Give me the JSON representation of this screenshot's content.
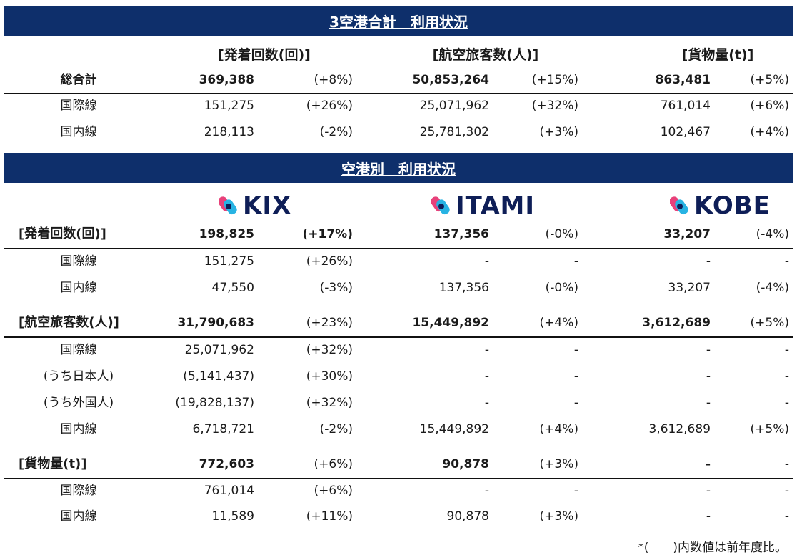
{
  "colors": {
    "banner_bg": "#0e2f6b",
    "banner_text": "#ffffff",
    "logo_text": "#0e1e57",
    "logo_pink": "#e8417a",
    "logo_cyan": "#27b3e3"
  },
  "section1": {
    "title": "3空港合計　利用状況",
    "headers": {
      "flights": "[発着回数(回)]",
      "passengers": "[航空旅客数(人)]",
      "cargo": "[貨物量(t)]"
    },
    "rows": [
      {
        "label": "総合計",
        "flights": "369,388",
        "flights_pct": "(+8%)",
        "passengers": "50,853,264",
        "passengers_pct": "(+15%)",
        "cargo": "863,481",
        "cargo_pct": "(+5%)"
      },
      {
        "label": "国際線",
        "flights": "151,275",
        "flights_pct": "(+26%)",
        "passengers": "25,071,962",
        "passengers_pct": "(+32%)",
        "cargo": "761,014",
        "cargo_pct": "(+6%)"
      },
      {
        "label": "国内線",
        "flights": "218,113",
        "flights_pct": "(-2%)",
        "passengers": "25,781,302",
        "passengers_pct": "(+3%)",
        "cargo": "102,467",
        "cargo_pct": "(+4%)"
      }
    ]
  },
  "section2": {
    "title": "空港別　利用状況",
    "logos": {
      "kix": "KIX",
      "itami": "ITAMI",
      "kobe": "KOBE",
      "icon": "kansai-airports-icon"
    },
    "rows": [
      {
        "label": "[発着回数(回)]",
        "kix": "198,825",
        "kix_pct": "(+17%)",
        "itami": "137,356",
        "itami_pct": "(-0%)",
        "kobe": "33,207",
        "kobe_pct": "(-4%)"
      },
      {
        "label": "国際線",
        "kix": "151,275",
        "kix_pct": "(+26%)",
        "itami": "-",
        "itami_pct": "-",
        "kobe": "-",
        "kobe_pct": "-"
      },
      {
        "label": "国内線",
        "kix": "47,550",
        "kix_pct": "(-3%)",
        "itami": "137,356",
        "itami_pct": "(-0%)",
        "kobe": "33,207",
        "kobe_pct": "(-4%)"
      },
      {
        "label": "[航空旅客数(人)]",
        "kix": "31,790,683",
        "kix_pct": "(+23%)",
        "itami": "15,449,892",
        "itami_pct": "(+4%)",
        "kobe": "3,612,689",
        "kobe_pct": "(+5%)"
      },
      {
        "label": "国際線",
        "kix": "25,071,962",
        "kix_pct": "(+32%)",
        "itami": "-",
        "itami_pct": "-",
        "kobe": "-",
        "kobe_pct": "-"
      },
      {
        "label": "(うち日本人)",
        "kix": "(5,141,437)",
        "kix_pct": "(+30%)",
        "itami": "-",
        "itami_pct": "-",
        "kobe": "-",
        "kobe_pct": "-"
      },
      {
        "label": "(うち外国人)",
        "kix": "(19,828,137)",
        "kix_pct": "(+32%)",
        "itami": "-",
        "itami_pct": "-",
        "kobe": "-",
        "kobe_pct": "-"
      },
      {
        "label": "国内線",
        "kix": "6,718,721",
        "kix_pct": "(-2%)",
        "itami": "15,449,892",
        "itami_pct": "(+4%)",
        "kobe": "3,612,689",
        "kobe_pct": "(+5%)"
      },
      {
        "label": "[貨物量(t)]",
        "kix": "772,603",
        "kix_pct": "(+6%)",
        "itami": "90,878",
        "itami_pct": "(+3%)",
        "kobe": "-",
        "kobe_pct": "-"
      },
      {
        "label": "国際線",
        "kix": "761,014",
        "kix_pct": "(+6%)",
        "itami": "-",
        "itami_pct": "-",
        "kobe": "-",
        "kobe_pct": "-"
      },
      {
        "label": "国内線",
        "kix": "11,589",
        "kix_pct": "(+11%)",
        "itami": "90,878",
        "itami_pct": "(+3%)",
        "kobe": "-",
        "kobe_pct": "-"
      }
    ]
  },
  "footnote": "*(　　)内数値は前年度比。"
}
